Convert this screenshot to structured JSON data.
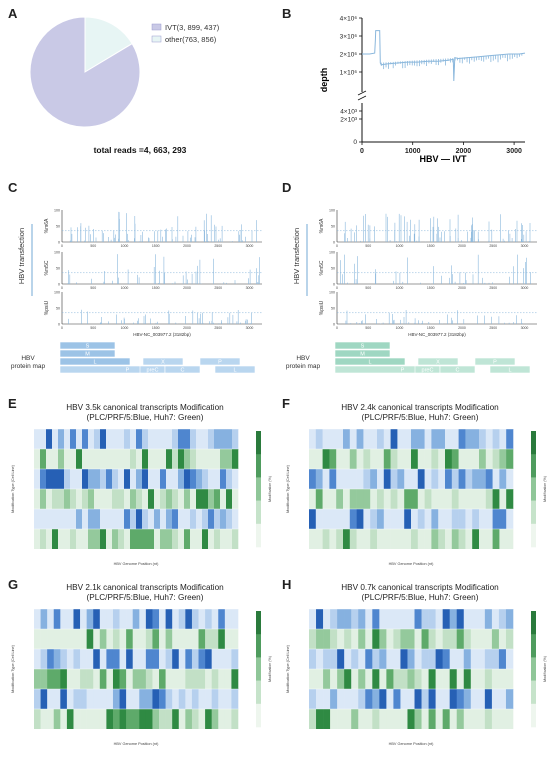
{
  "panels": {
    "A": "A",
    "B": "B",
    "C": "C",
    "D": "D",
    "E": "E",
    "F": "F",
    "G": "G",
    "H": "H"
  },
  "chart_data": [
    {
      "id": "A",
      "type": "pie",
      "categories": [
        "IVT",
        "other"
      ],
      "values": [
        3899437,
        763856
      ],
      "legend_labels": [
        "IVT(3, 899, 437)",
        "other(763, 856)"
      ],
      "colors": [
        "#c9c9e6",
        "#e7f5f4"
      ],
      "caption": "total reads =4, 663, 293",
      "legend": "top-right"
    },
    {
      "id": "B",
      "type": "line",
      "xlabel": "HBV — IVT",
      "ylabel": "depth",
      "xlim": [
        0,
        3215
      ],
      "xticks": [
        0,
        1000,
        2000,
        3000
      ],
      "yticks_upper": [
        "1×10⁶",
        "2×10⁶",
        "3×10⁶",
        "4×10⁶"
      ],
      "yticks_lower": [
        "2×10³",
        "4×10³"
      ],
      "color": "#8ab7dc",
      "series": [
        {
          "x": [
            0,
            150,
            250,
            265,
            270,
            350,
            360,
            380,
            500,
            700,
            900,
            1100,
            1300,
            1500,
            1700,
            1800,
            1810,
            1830,
            1900,
            2100,
            2300,
            2500,
            2700,
            2900,
            3100,
            3215
          ],
          "y": [
            2000000,
            2000000,
            2050000,
            2800000,
            3300000,
            3300000,
            1500000,
            1400000,
            1450000,
            1500000,
            1550000,
            1550000,
            1600000,
            1600000,
            1650000,
            1700000,
            500000,
            1800000,
            1750000,
            1800000,
            1850000,
            1900000,
            1950000,
            2000000,
            2000000,
            2050000
          ]
        }
      ]
    },
    {
      "id": "C",
      "type": "bar",
      "side_label": "HBV transfection",
      "tracks": [
        "%m6A",
        "%m5C",
        "%psiU"
      ],
      "xlabel": "HBV-NC_003977.2 (3182bp)",
      "xticks": [
        0,
        500,
        1000,
        1500,
        2000,
        2500,
        3000
      ],
      "color": "#8ab7dc",
      "protein_map_label": "HBV protein map",
      "protein_labels": [
        "S",
        "M",
        "L",
        "X",
        "P",
        "P",
        "preC",
        "C",
        "L"
      ]
    },
    {
      "id": "D",
      "type": "bar",
      "side_label": "HBV transfection",
      "tracks": [
        "%m6A",
        "%m5C",
        "%psiU"
      ],
      "xlabel": "HBV-NC_003977.2 (3182bp)",
      "xticks": [
        0,
        500,
        1000,
        1500,
        2000,
        2500,
        3000
      ],
      "color": "#8ab7dc",
      "protein_map_label": "HBV protein map",
      "protein_labels": [
        "S",
        "M",
        "L",
        "X",
        "P",
        "P",
        "preC",
        "C",
        "L"
      ]
    },
    {
      "id": "E",
      "type": "heatmap",
      "title": "HBV 3.5k canonical transcripts Modification",
      "subtitle": "(PLC/PRF/5:Blue,  Huh7:  Green)",
      "xlabel": "HBV Genome Position (nt)",
      "ylabel": "Modification Type (Cell Line)",
      "colorbar_label": "Modification (%)"
    },
    {
      "id": "F",
      "type": "heatmap",
      "title": "HBV 2.4k canonical transcripts Modification",
      "subtitle": "(PLC/PRF/5:Blue,  Huh7:  Green)",
      "xlabel": "HBV Genome Position (nt)",
      "ylabel": "Modification Type (Cell Line)",
      "colorbar_label": "Modification (%)"
    },
    {
      "id": "G",
      "type": "heatmap",
      "title": "HBV 2.1k canonical transcripts Modification",
      "subtitle": "(PLC/PRF/5:Blue,  Huh7:  Green)",
      "xlabel": "HBV Genome Position (nt)",
      "ylabel": "Modification Type (Cell Line)",
      "colorbar_label": "Modification (%)"
    },
    {
      "id": "H",
      "type": "heatmap",
      "title": "HBV 0.7k canonical transcripts Modification",
      "subtitle": "(PLC/PRF/5:Blue,  Huh7:  Green)",
      "xlabel": "HBV Genome Position (nt)",
      "ylabel": "Modification Type (Cell Line)",
      "colorbar_label": "Modification (%)"
    }
  ]
}
